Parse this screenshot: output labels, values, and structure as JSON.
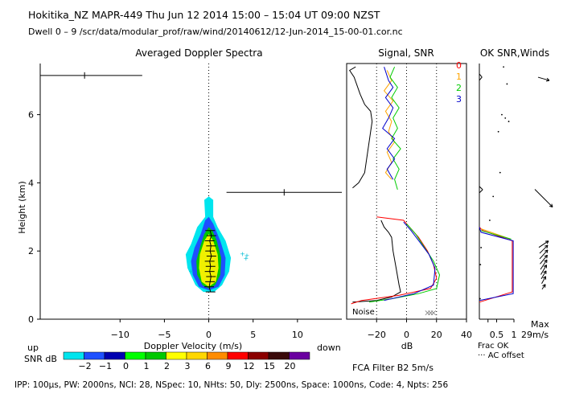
{
  "header": {
    "line1": "Hokitika_NZ   MAPR-449   Thu Jun 12 2014 15:00 – 15:04 UT 09:00 NZST",
    "line2": "Dwell   0  –   9    /scr/data/modular_prof/raw/wind/20140612/12-Jun-2014_15-00-01.cor.nc"
  },
  "footer": {
    "params": "IPP: 100µs,  PW: 2000ns,  NCI: 28,  NSpec: 10, NHts: 50,  Dly: 2500ns,  Space: 1000ns,  Code: 4,  Npts: 256",
    "fca": "FCA Filter B2   5m/s"
  },
  "colors": {
    "beam0": "#ff0000",
    "beam1": "#ffa500",
    "beam2": "#00cc00",
    "beam3": "#0000cc",
    "black": "#000000"
  },
  "chart_data": [
    {
      "type": "heatmap",
      "title": "Averaged Doppler Spectra",
      "xlabel": "Doppler Velocity (m/s)",
      "ylabel": "Height (km)",
      "xlim": [
        -19,
        15
      ],
      "ylim": [
        0,
        7.5
      ],
      "xticks": [
        -10,
        -5,
        0,
        5,
        10
      ],
      "yticks": [
        0,
        2,
        4,
        6
      ],
      "edge_labels": {
        "left": "up",
        "right": "down"
      },
      "contours": [
        {
          "level": "low",
          "color": "#00e5ee",
          "points": [
            [
              0,
              3.6
            ],
            [
              -0.5,
              3.5
            ],
            [
              -0.4,
              3.0
            ],
            [
              -1.3,
              2.7
            ],
            [
              -2.0,
              2.2
            ],
            [
              -2.6,
              1.9
            ],
            [
              -2.4,
              1.5
            ],
            [
              -1.5,
              1.0
            ],
            [
              -0.6,
              0.8
            ],
            [
              0.6,
              0.8
            ],
            [
              1.5,
              1.0
            ],
            [
              2.3,
              1.4
            ],
            [
              2.5,
              1.8
            ],
            [
              1.9,
              2.3
            ],
            [
              1.0,
              2.7
            ],
            [
              0.5,
              3.0
            ],
            [
              0.5,
              3.5
            ]
          ]
        },
        {
          "level": "mid",
          "color": "#1e50ff",
          "points": [
            [
              0,
              3.0
            ],
            [
              -0.4,
              2.9
            ],
            [
              -0.9,
              2.5
            ],
            [
              -1.6,
              2.1
            ],
            [
              -2.0,
              1.7
            ],
            [
              -1.8,
              1.3
            ],
            [
              -1.1,
              0.95
            ],
            [
              0,
              0.85
            ],
            [
              1.1,
              0.95
            ],
            [
              1.8,
              1.3
            ],
            [
              1.9,
              1.8
            ],
            [
              1.3,
              2.3
            ],
            [
              0.5,
              2.8
            ]
          ]
        },
        {
          "level": "high",
          "color": "#00c800",
          "points": [
            [
              0,
              2.7
            ],
            [
              -0.5,
              2.5
            ],
            [
              -1.0,
              2.1
            ],
            [
              -1.4,
              1.7
            ],
            [
              -1.3,
              1.3
            ],
            [
              -0.7,
              1.0
            ],
            [
              0,
              0.9
            ],
            [
              0.7,
              1.0
            ],
            [
              1.3,
              1.3
            ],
            [
              1.4,
              1.8
            ],
            [
              0.9,
              2.3
            ],
            [
              0.4,
              2.6
            ]
          ]
        },
        {
          "level": "peak",
          "color": "#f0f000",
          "points": [
            [
              0,
              2.5
            ],
            [
              -0.5,
              2.3
            ],
            [
              -1.0,
              1.9
            ],
            [
              -1.1,
              1.5
            ],
            [
              -0.8,
              1.1
            ],
            [
              0,
              0.95
            ],
            [
              0.8,
              1.1
            ],
            [
              1.1,
              1.5
            ],
            [
              1.0,
              1.9
            ],
            [
              0.5,
              2.3
            ]
          ]
        }
      ],
      "specks": [
        [
          3.8,
          1.85
        ],
        [
          4.2,
          1.72
        ],
        [
          4.3,
          1.8
        ],
        [
          -2.0,
          1.35
        ]
      ],
      "noise_bars": [
        {
          "height": 7.15,
          "x_from": -19,
          "x_to": -7.5,
          "tick": -14
        },
        {
          "height": 3.72,
          "x_from": 2,
          "x_to": 15,
          "tick": 8.5
        }
      ],
      "mean_velocity_profile": [
        [
          0.15,
          2.6
        ],
        [
          0.3,
          2.45
        ],
        [
          0.1,
          2.3
        ],
        [
          0.25,
          2.15
        ],
        [
          0.15,
          2.0
        ],
        [
          0.3,
          1.85
        ],
        [
          0.1,
          1.7
        ],
        [
          0.2,
          1.55
        ],
        [
          0.1,
          1.4
        ],
        [
          0.25,
          1.25
        ],
        [
          0.15,
          1.1
        ],
        [
          0.05,
          0.95
        ],
        [
          0.2,
          0.8
        ]
      ],
      "colorbar": {
        "label": "SNR dB",
        "labels": [
          "-2",
          "-1",
          "0",
          "1",
          "2",
          "3",
          "6",
          "9",
          "12",
          "15",
          "20"
        ],
        "colors": [
          "#00e5ee",
          "#1e50ff",
          "#0000b0",
          "#00ff00",
          "#00c800",
          "#ffff00",
          "#ffd700",
          "#ff8c00",
          "#ff0000",
          "#8b0000",
          "#3a0a0a",
          "#6a00a0"
        ]
      }
    },
    {
      "type": "line",
      "title": "Signal, SNR",
      "xlabel": "dB",
      "xlim": [
        -40,
        40
      ],
      "ylim": [
        0,
        7.5
      ],
      "xticks": [
        -20,
        0,
        20,
        40
      ],
      "noise_label": "Noise",
      "beam_labels": [
        "0",
        "1",
        "2",
        "3"
      ],
      "series": [
        {
          "name": "signal",
          "color": "#000000",
          "points": [
            [
              -36,
              3.85
            ],
            [
              -32,
              4.0
            ],
            [
              -28,
              4.3
            ],
            [
              -26,
              4.9
            ],
            [
              -24,
              5.5
            ],
            [
              -23,
              5.8
            ],
            [
              -24,
              6.1
            ],
            [
              -28,
              6.3
            ],
            [
              -31,
              6.6
            ],
            [
              -35,
              7.1
            ],
            [
              -38,
              7.3
            ],
            [
              -34,
              7.4
            ]
          ]
        },
        {
          "name": "signal-low",
          "color": "#000000",
          "points": [
            [
              -17,
              2.9
            ],
            [
              -15,
              2.7
            ],
            [
              -12,
              2.55
            ],
            [
              -10,
              2.4
            ],
            [
              -9,
              2.0
            ],
            [
              -7,
              1.5
            ],
            [
              -5,
              1.0
            ],
            [
              -4,
              0.8
            ],
            [
              -10,
              0.65
            ],
            [
              -20,
              0.55
            ],
            [
              -36,
              0.5
            ]
          ]
        },
        {
          "name": "snr0",
          "color": "#ff0000",
          "points": [
            [
              -20,
              3.0
            ],
            [
              -2,
              2.9
            ],
            [
              2,
              2.7
            ],
            [
              8,
              2.4
            ],
            [
              14,
              2.0
            ],
            [
              18,
              1.6
            ],
            [
              20,
              1.2
            ],
            [
              16,
              0.9
            ],
            [
              -5,
              0.7
            ],
            [
              -30,
              0.55
            ],
            [
              -37,
              0.45
            ]
          ]
        },
        {
          "name": "snr1",
          "color": "#ffa500",
          "points": [
            [
              -13,
              7.3
            ],
            [
              -10,
              7.0
            ],
            [
              -15,
              6.7
            ],
            [
              -9,
              6.4
            ],
            [
              -14,
              6.1
            ],
            [
              -10,
              5.8
            ],
            [
              -12,
              5.5
            ],
            [
              -8,
              5.2
            ],
            [
              -13,
              4.9
            ],
            [
              -10,
              4.6
            ],
            [
              -14,
              4.3
            ],
            [
              -10,
              4.1
            ]
          ]
        },
        {
          "name": "snr2",
          "color": "#00cc00",
          "points": [
            [
              -8,
              7.4
            ],
            [
              -11,
              7.1
            ],
            [
              -6,
              6.8
            ],
            [
              -10,
              6.5
            ],
            [
              -5,
              6.2
            ],
            [
              -9,
              5.9
            ],
            [
              -6,
              5.6
            ],
            [
              -10,
              5.3
            ],
            [
              -4,
              5.0
            ],
            [
              -9,
              4.7
            ],
            [
              -5,
              4.4
            ],
            [
              -8,
              4.1
            ],
            [
              -6,
              3.8
            ]
          ]
        },
        {
          "name": "snr2-low",
          "color": "#00cc00",
          "points": [
            [
              0,
              2.8
            ],
            [
              6,
              2.5
            ],
            [
              12,
              2.1
            ],
            [
              18,
              1.7
            ],
            [
              22,
              1.3
            ],
            [
              20,
              0.9
            ],
            [
              8,
              0.75
            ],
            [
              -10,
              0.6
            ],
            [
              -25,
              0.5
            ]
          ]
        },
        {
          "name": "snr3",
          "color": "#0000cc",
          "points": [
            [
              -15,
              7.4
            ],
            [
              -12,
              7.0
            ],
            [
              -9,
              6.8
            ],
            [
              -14,
              6.5
            ],
            [
              -9,
              6.2
            ],
            [
              -12,
              5.9
            ],
            [
              -16,
              5.6
            ],
            [
              -8,
              5.3
            ],
            [
              -13,
              5.0
            ],
            [
              -8,
              4.7
            ],
            [
              -13,
              4.4
            ],
            [
              -9,
              4.1
            ]
          ]
        },
        {
          "name": "snr3-low",
          "color": "#0000cc",
          "points": [
            [
              -2,
              2.85
            ],
            [
              3,
              2.6
            ],
            [
              9,
              2.25
            ],
            [
              15,
              1.9
            ],
            [
              19,
              1.5
            ],
            [
              18,
              1.0
            ],
            [
              5,
              0.75
            ],
            [
              -15,
              0.55
            ]
          ]
        }
      ],
      "noise_markers": [
        [
          14,
          0.2
        ],
        [
          16,
          0.2
        ],
        [
          18,
          0.2
        ]
      ]
    },
    {
      "type": "line",
      "title": "OK SNR,Winds",
      "xlabel": "Frac OK",
      "xlim": [
        0,
        1
      ],
      "ylim": [
        0,
        7.5
      ],
      "xticks": [
        "0.5",
        "1"
      ],
      "legend": "AC offset",
      "series": [
        {
          "name": "ok0",
          "color": "#ff0000",
          "points": [
            [
              0,
              0.5
            ],
            [
              0.95,
              0.8
            ],
            [
              0.95,
              2.3
            ],
            [
              0.1,
              2.6
            ],
            [
              0,
              2.7
            ]
          ]
        },
        {
          "name": "ok1",
          "color": "#ffa500",
          "points": [
            [
              0.05,
              2.65
            ],
            [
              0.9,
              2.35
            ]
          ]
        },
        {
          "name": "ok2",
          "color": "#00cc00",
          "points": [
            [
              0.05,
              2.6
            ],
            [
              0.92,
              2.35
            ]
          ]
        },
        {
          "name": "ok3",
          "color": "#0000cc",
          "points": [
            [
              0,
              0.55
            ],
            [
              0.98,
              0.75
            ],
            [
              0.98,
              2.3
            ],
            [
              0.05,
              2.55
            ],
            [
              0,
              2.7
            ]
          ]
        }
      ],
      "dots": [
        [
          0.02,
          0.6
        ],
        [
          0.03,
          1.6
        ],
        [
          0.05,
          2.1
        ],
        [
          0.65,
          6.0
        ],
        [
          0.7,
          7.4
        ],
        [
          0.75,
          5.9
        ],
        [
          0.8,
          6.9
        ],
        [
          0.85,
          5.8
        ],
        [
          0.55,
          5.5
        ],
        [
          0.6,
          4.3
        ],
        [
          0.4,
          3.6
        ],
        [
          0.3,
          2.9
        ]
      ],
      "stubs": [
        [
          0.03,
          7.1
        ],
        [
          0.05,
          3.8
        ]
      ],
      "wind_max_label": "Max",
      "wind_max_value": "29m/s",
      "wind_barbs": [
        {
          "height": 7.05,
          "dx": 14,
          "dy": 4
        },
        {
          "height": 3.55,
          "dx": 22,
          "dy": 22
        },
        {
          "height": 2.2,
          "dx": 12,
          "dy": -8
        },
        {
          "height": 2.05,
          "dx": 10,
          "dy": -10
        },
        {
          "height": 1.9,
          "dx": 10,
          "dy": -11
        },
        {
          "height": 1.75,
          "dx": 9,
          "dy": -11
        },
        {
          "height": 1.6,
          "dx": 8,
          "dy": -12
        },
        {
          "height": 1.45,
          "dx": 7,
          "dy": -12
        },
        {
          "height": 1.3,
          "dx": 6,
          "dy": -10
        },
        {
          "height": 1.15,
          "dx": 5,
          "dy": -9
        },
        {
          "height": 0.95,
          "dx": 4,
          "dy": -6
        }
      ]
    }
  ]
}
